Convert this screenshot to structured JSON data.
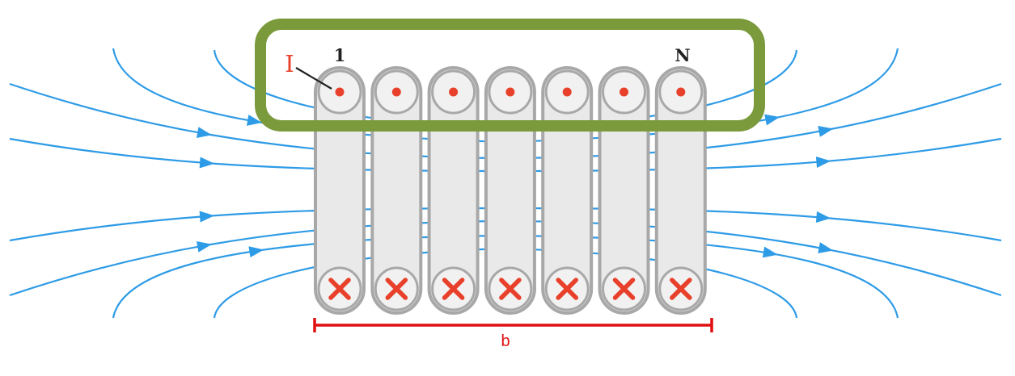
{
  "labels": {
    "current": "I",
    "first_turn": "1",
    "last_turn": "N",
    "length": "b"
  },
  "turns": 7,
  "colors": {
    "field_lines": "#2e9be6",
    "current_marks": "#e8402a",
    "dimension": "#e01010",
    "highlight_box": "#7a9a3c",
    "coil_stroke": "#a8a8a8",
    "coil_fill": "#e9e9e9",
    "label_text": "#222222"
  }
}
